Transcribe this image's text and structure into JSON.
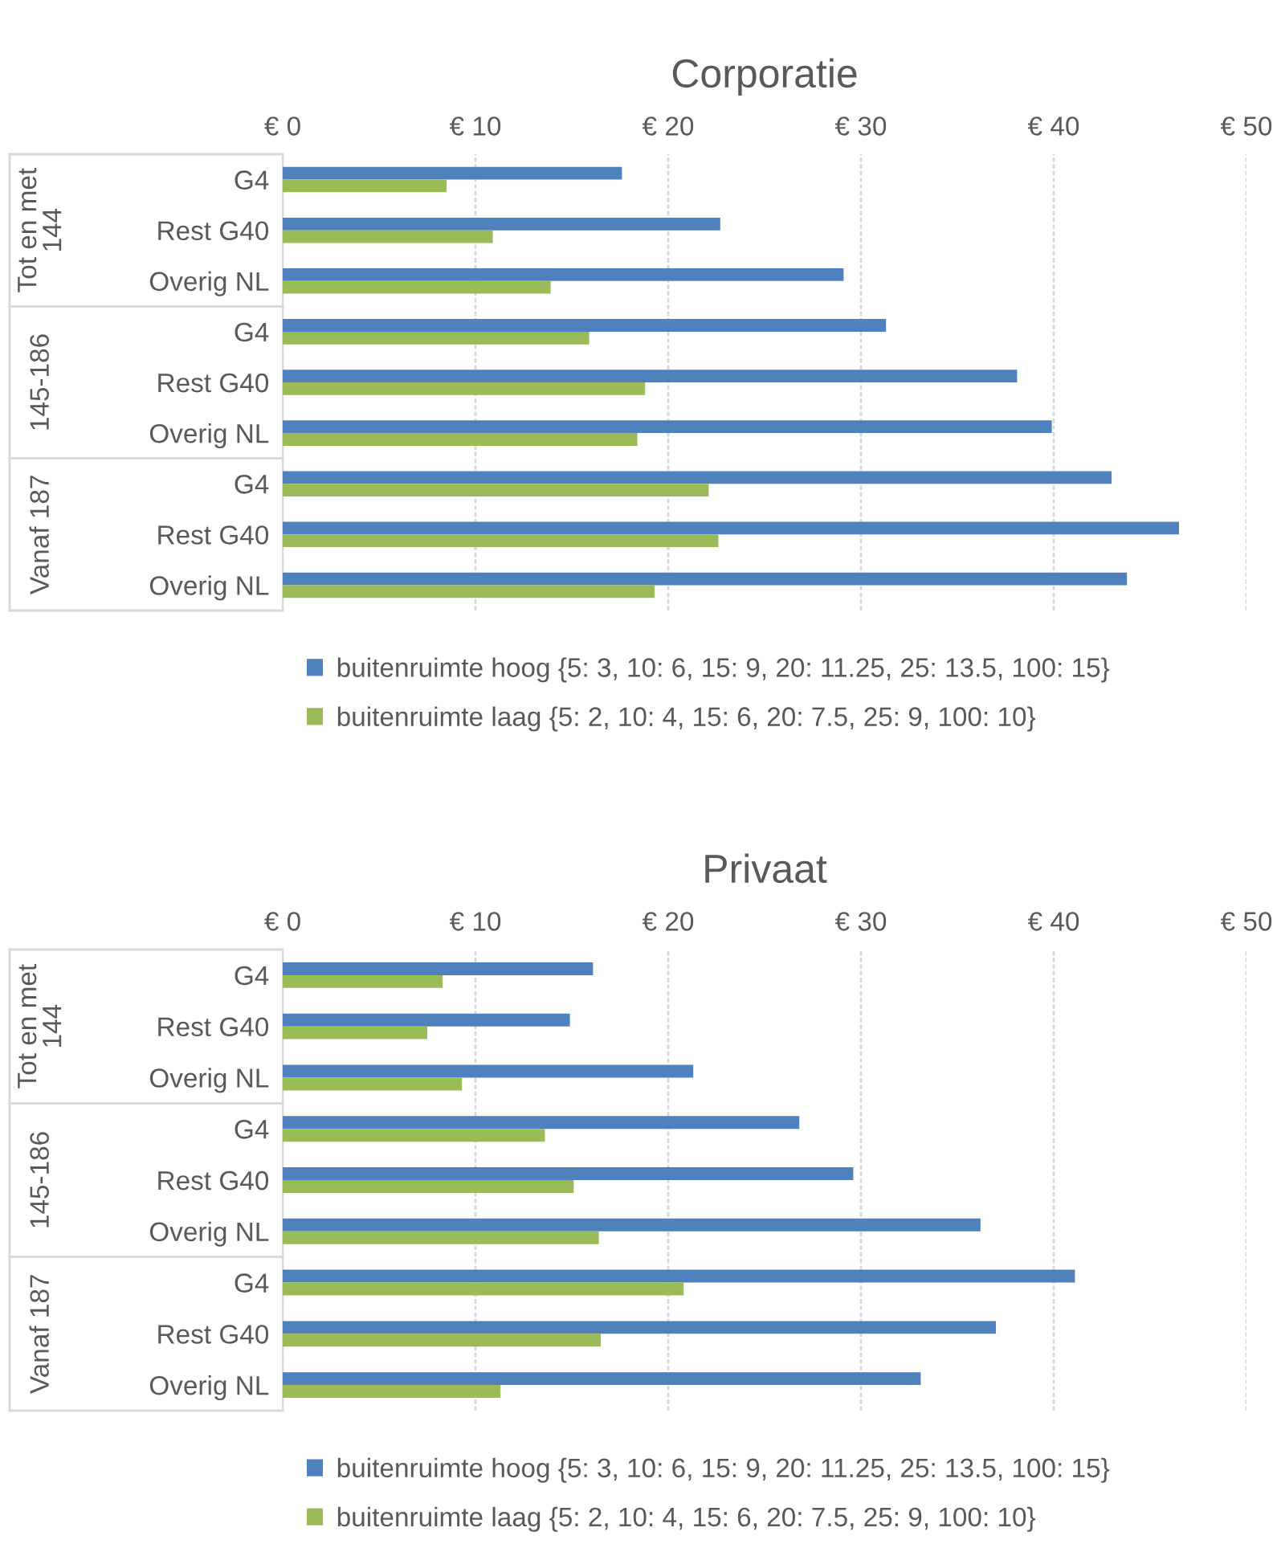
{
  "chart_data": [
    {
      "type": "bar",
      "orientation": "horizontal",
      "title": "Corporatie",
      "categories": [
        "G4",
        "Rest G40",
        "Overig NL",
        "G4",
        "Rest G40",
        "Overig NL",
        "G4",
        "Rest G40",
        "Overig NL"
      ],
      "annotations": [
        "Tot en met\n144",
        "145-186",
        "Vanaf 187"
      ],
      "series": [
        {
          "name": "buitenruimte hoog {5: 3, 10: 6, 15: 9, 20: 11.25, 25: 13.5, 100: 15}",
          "color": "#4f81bd",
          "values": [
            17.6,
            22.7,
            29.1,
            31.3,
            38.1,
            39.9,
            43.0,
            46.5,
            43.8
          ]
        },
        {
          "name": "buitenruimte laag {5: 2, 10: 4, 15: 6, 20: 7.5, 25: 9, 100: 10}",
          "color": "#9bbb59",
          "values": [
            8.5,
            10.9,
            13.9,
            15.9,
            18.8,
            18.4,
            22.1,
            22.6,
            19.3
          ]
        }
      ],
      "xlim": [
        0,
        50
      ],
      "xticks": [
        {
          "value": 0,
          "label": "€ 0"
        },
        {
          "value": 10,
          "label": "€ 10"
        },
        {
          "value": 20,
          "label": "€ 20"
        },
        {
          "value": 30,
          "label": "€ 30"
        },
        {
          "value": 40,
          "label": "€ 40"
        },
        {
          "value": 50,
          "label": "€ 50"
        }
      ],
      "grid": "x",
      "legend": "bottom"
    },
    {
      "type": "bar",
      "orientation": "horizontal",
      "title": "Privaat",
      "categories": [
        "G4",
        "Rest G40",
        "Overig NL",
        "G4",
        "Rest G40",
        "Overig NL",
        "G4",
        "Rest G40",
        "Overig NL"
      ],
      "annotations": [
        "Tot en met\n144",
        "145-186",
        "Vanaf 187"
      ],
      "series": [
        {
          "name": "buitenruimte hoog {5: 3, 10: 6, 15: 9, 20: 11.25, 25: 13.5, 100: 15}",
          "color": "#4f81bd",
          "values": [
            16.1,
            14.9,
            21.3,
            26.8,
            29.6,
            36.2,
            41.1,
            37.0,
            33.1
          ]
        },
        {
          "name": "buitenruimte laag {5: 2, 10: 4, 15: 6, 20: 7.5, 25: 9, 100: 10}",
          "color": "#9bbb59",
          "values": [
            8.3,
            7.5,
            9.3,
            13.6,
            15.1,
            16.4,
            20.8,
            16.5,
            11.3
          ]
        }
      ],
      "xlim": [
        0,
        50
      ],
      "xticks": [
        {
          "value": 0,
          "label": "€ 0"
        },
        {
          "value": 10,
          "label": "€ 10"
        },
        {
          "value": 20,
          "label": "€ 20"
        },
        {
          "value": 30,
          "label": "€ 30"
        },
        {
          "value": 40,
          "label": "€ 40"
        },
        {
          "value": 50,
          "label": "€ 50"
        }
      ],
      "grid": "x",
      "legend": "bottom"
    }
  ]
}
